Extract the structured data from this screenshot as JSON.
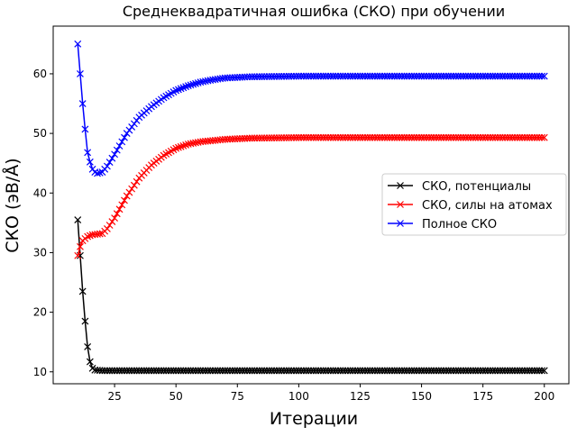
{
  "chart_data": {
    "type": "line",
    "title": "Среднеквадратичная ошибка (СКО) при обучении",
    "xlabel": "Итерации",
    "ylabel": "СКО (эВ/Å)",
    "xlim": [
      0,
      210
    ],
    "ylim": [
      8,
      68
    ],
    "xticks": [
      25,
      50,
      75,
      100,
      125,
      150,
      175,
      200
    ],
    "yticks": [
      10,
      20,
      30,
      40,
      50,
      60
    ],
    "legend_position": "center-right",
    "marker": "x",
    "series": [
      {
        "name": "СКО, потенциалы",
        "color": "#000000",
        "points": [
          [
            10,
            35.5
          ],
          [
            11,
            29.5
          ],
          [
            12,
            23.5
          ],
          [
            13,
            18.5
          ],
          [
            14,
            14.2
          ],
          [
            15,
            11.7
          ],
          [
            16,
            10.6
          ],
          [
            17,
            10.3
          ],
          [
            20,
            10.2
          ],
          [
            200,
            10.2
          ]
        ]
      },
      {
        "name": "СКО, силы на атомах",
        "color": "#ff0000",
        "points": [
          [
            10,
            29.5
          ],
          [
            11,
            31.0
          ],
          [
            12,
            32.0
          ],
          [
            14,
            32.7
          ],
          [
            16,
            33.0
          ],
          [
            20,
            33.2
          ],
          [
            22,
            34.0
          ],
          [
            25,
            35.8
          ],
          [
            30,
            39.5
          ],
          [
            35,
            42.5
          ],
          [
            40,
            44.7
          ],
          [
            45,
            46.3
          ],
          [
            50,
            47.5
          ],
          [
            55,
            48.2
          ],
          [
            60,
            48.6
          ],
          [
            70,
            49.0
          ],
          [
            80,
            49.2
          ],
          [
            100,
            49.3
          ],
          [
            150,
            49.3
          ],
          [
            200,
            49.3
          ]
        ]
      },
      {
        "name": "Полное СКО",
        "color": "#0000ff",
        "points": [
          [
            10,
            65.0
          ],
          [
            11,
            60.0
          ],
          [
            12,
            55.0
          ],
          [
            13,
            50.7
          ],
          [
            14,
            46.8
          ],
          [
            15,
            45.2
          ],
          [
            16,
            44.0
          ],
          [
            17,
            43.5
          ],
          [
            18,
            43.3
          ],
          [
            20,
            43.5
          ],
          [
            22,
            44.5
          ],
          [
            25,
            46.5
          ],
          [
            30,
            50.0
          ],
          [
            35,
            52.7
          ],
          [
            40,
            54.5
          ],
          [
            45,
            56.0
          ],
          [
            50,
            57.2
          ],
          [
            55,
            58.0
          ],
          [
            60,
            58.6
          ],
          [
            65,
            59.0
          ],
          [
            70,
            59.3
          ],
          [
            80,
            59.5
          ],
          [
            100,
            59.6
          ],
          [
            150,
            59.6
          ],
          [
            200,
            59.6
          ]
        ]
      }
    ]
  }
}
